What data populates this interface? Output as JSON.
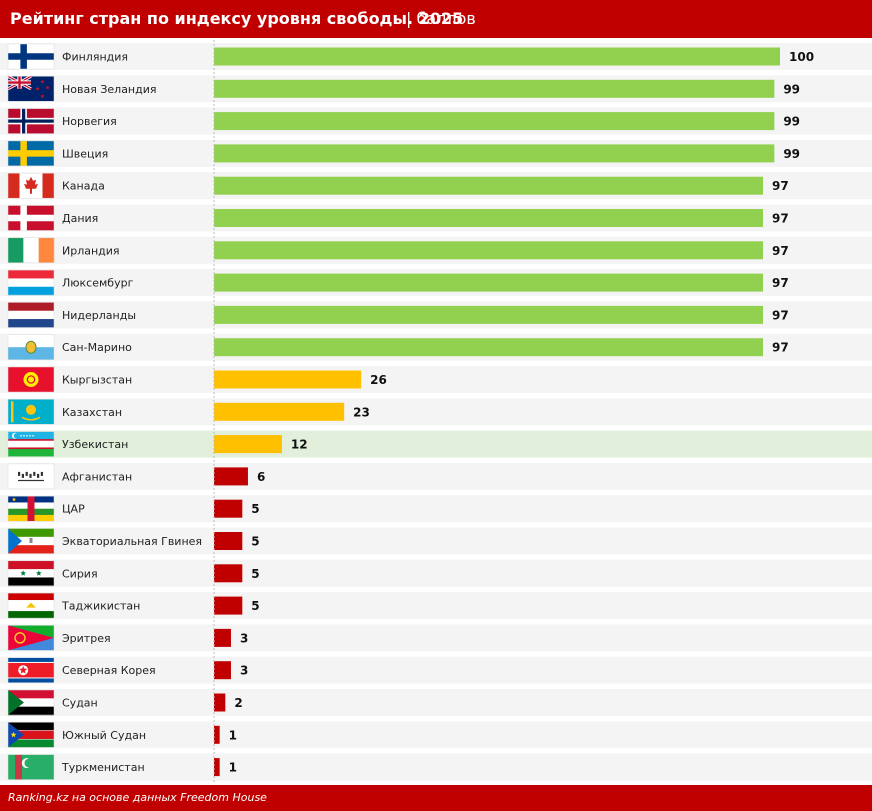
{
  "header": {
    "title": "Рейтинг стран по индексу уровня свободы. 2025",
    "unit": "| баллов"
  },
  "footer": {
    "source": "Ranking.kz на основе данных Freedom House"
  },
  "colors": {
    "high": "#92d050",
    "mid": "#ffc000",
    "low": "#c00000",
    "row_bg": "#f4f4f4",
    "row_highlight": "#e2efda"
  },
  "chart_data": {
    "type": "bar",
    "orientation": "horizontal",
    "title": "Рейтинг стран по индексу уровня свободы. 2025",
    "xlim": [
      0,
      100
    ],
    "grid": false,
    "highlight": "Узбекистан",
    "categories": [
      "Финляндия",
      "Новая Зеландия",
      "Норвегия",
      "Швеция",
      "Канада",
      "Дания",
      "Ирландия",
      "Люксембург",
      "Нидерланды",
      "Сан-Марино",
      "Кыргызстан",
      "Казахстан",
      "Узбекистан",
      "Афганистан",
      "ЦАР",
      "Экваториальная Гвинея",
      "Сирия",
      "Таджикистан",
      "Эритрея",
      "Северная Корея",
      "Судан",
      "Южный Судан",
      "Туркменистан"
    ],
    "values": [
      100,
      99,
      99,
      99,
      97,
      97,
      97,
      97,
      97,
      97,
      26,
      23,
      12,
      6,
      5,
      5,
      5,
      5,
      3,
      3,
      2,
      1,
      1
    ],
    "bar_colors": [
      "#92d050",
      "#92d050",
      "#92d050",
      "#92d050",
      "#92d050",
      "#92d050",
      "#92d050",
      "#92d050",
      "#92d050",
      "#92d050",
      "#ffc000",
      "#ffc000",
      "#ffc000",
      "#c00000",
      "#c00000",
      "#c00000",
      "#c00000",
      "#c00000",
      "#c00000",
      "#c00000",
      "#c00000",
      "#c00000",
      "#c00000"
    ],
    "flags": [
      "finland-flag-icon",
      "new-zealand-flag-icon",
      "norway-flag-icon",
      "sweden-flag-icon",
      "canada-flag-icon",
      "denmark-flag-icon",
      "ireland-flag-icon",
      "luxembourg-flag-icon",
      "netherlands-flag-icon",
      "san-marino-flag-icon",
      "kyrgyzstan-flag-icon",
      "kazakhstan-flag-icon",
      "uzbekistan-flag-icon",
      "afghanistan-flag-icon",
      "car-flag-icon",
      "equatorial-guinea-flag-icon",
      "syria-flag-icon",
      "tajikistan-flag-icon",
      "eritrea-flag-icon",
      "north-korea-flag-icon",
      "sudan-flag-icon",
      "south-sudan-flag-icon",
      "turkmenistan-flag-icon"
    ]
  }
}
